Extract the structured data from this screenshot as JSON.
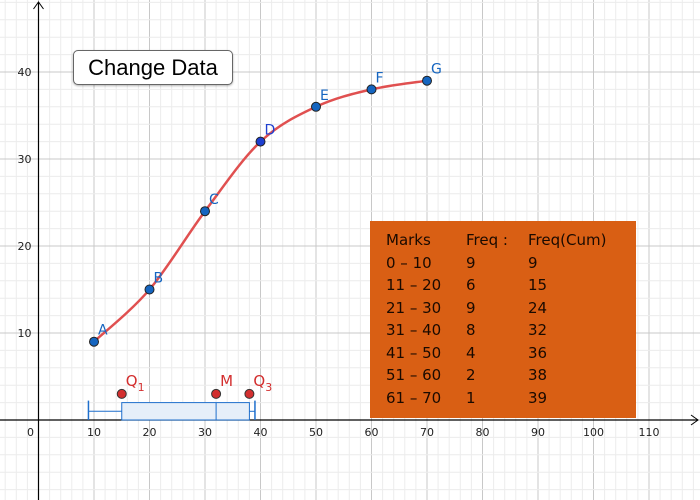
{
  "button": {
    "label": "Change Data"
  },
  "axes": {
    "x_ticks": [
      0,
      10,
      20,
      30,
      40,
      50,
      60,
      70,
      80,
      90,
      100,
      110
    ],
    "y_ticks": [
      10,
      20,
      30,
      40
    ]
  },
  "colors": {
    "curve": "#e05050",
    "point": "#1565c0",
    "label": "#1565c0",
    "quartile": "#d32f2f",
    "box_fill": "#e6eff9",
    "box_stroke": "#1e6fcc",
    "table_bg": "#d95f14"
  },
  "points": [
    {
      "label": "A",
      "x": 10,
      "y": 9
    },
    {
      "label": "B",
      "x": 20,
      "y": 15
    },
    {
      "label": "C",
      "x": 30,
      "y": 24
    },
    {
      "label": "D",
      "x": 40,
      "y": 32
    },
    {
      "label": "E",
      "x": 50,
      "y": 36
    },
    {
      "label": "F",
      "x": 60,
      "y": 38
    },
    {
      "label": "G",
      "x": 70,
      "y": 39
    }
  ],
  "boxplot": {
    "min": 9,
    "q1": 15,
    "median": 32,
    "q3": 38,
    "max": 39
  },
  "quartile_points": [
    {
      "label": "Q",
      "sub": "1",
      "x": 15,
      "y": 3
    },
    {
      "label": "M",
      "sub": "",
      "x": 32,
      "y": 3
    },
    {
      "label": "Q",
      "sub": "3",
      "x": 38,
      "y": 3
    }
  ],
  "table": {
    "headers": [
      "Marks",
      "Freq :",
      "Freq(Cum)"
    ],
    "rows": [
      [
        "0 – 10",
        "9",
        "9"
      ],
      [
        "11 – 20",
        "6",
        "15"
      ],
      [
        "21 – 30",
        "9",
        "24"
      ],
      [
        "31 – 40",
        "8",
        "32"
      ],
      [
        "41 – 50",
        "4",
        "36"
      ],
      [
        "51 – 60",
        "2",
        "38"
      ],
      [
        "61 – 70",
        "1",
        "39"
      ]
    ]
  }
}
